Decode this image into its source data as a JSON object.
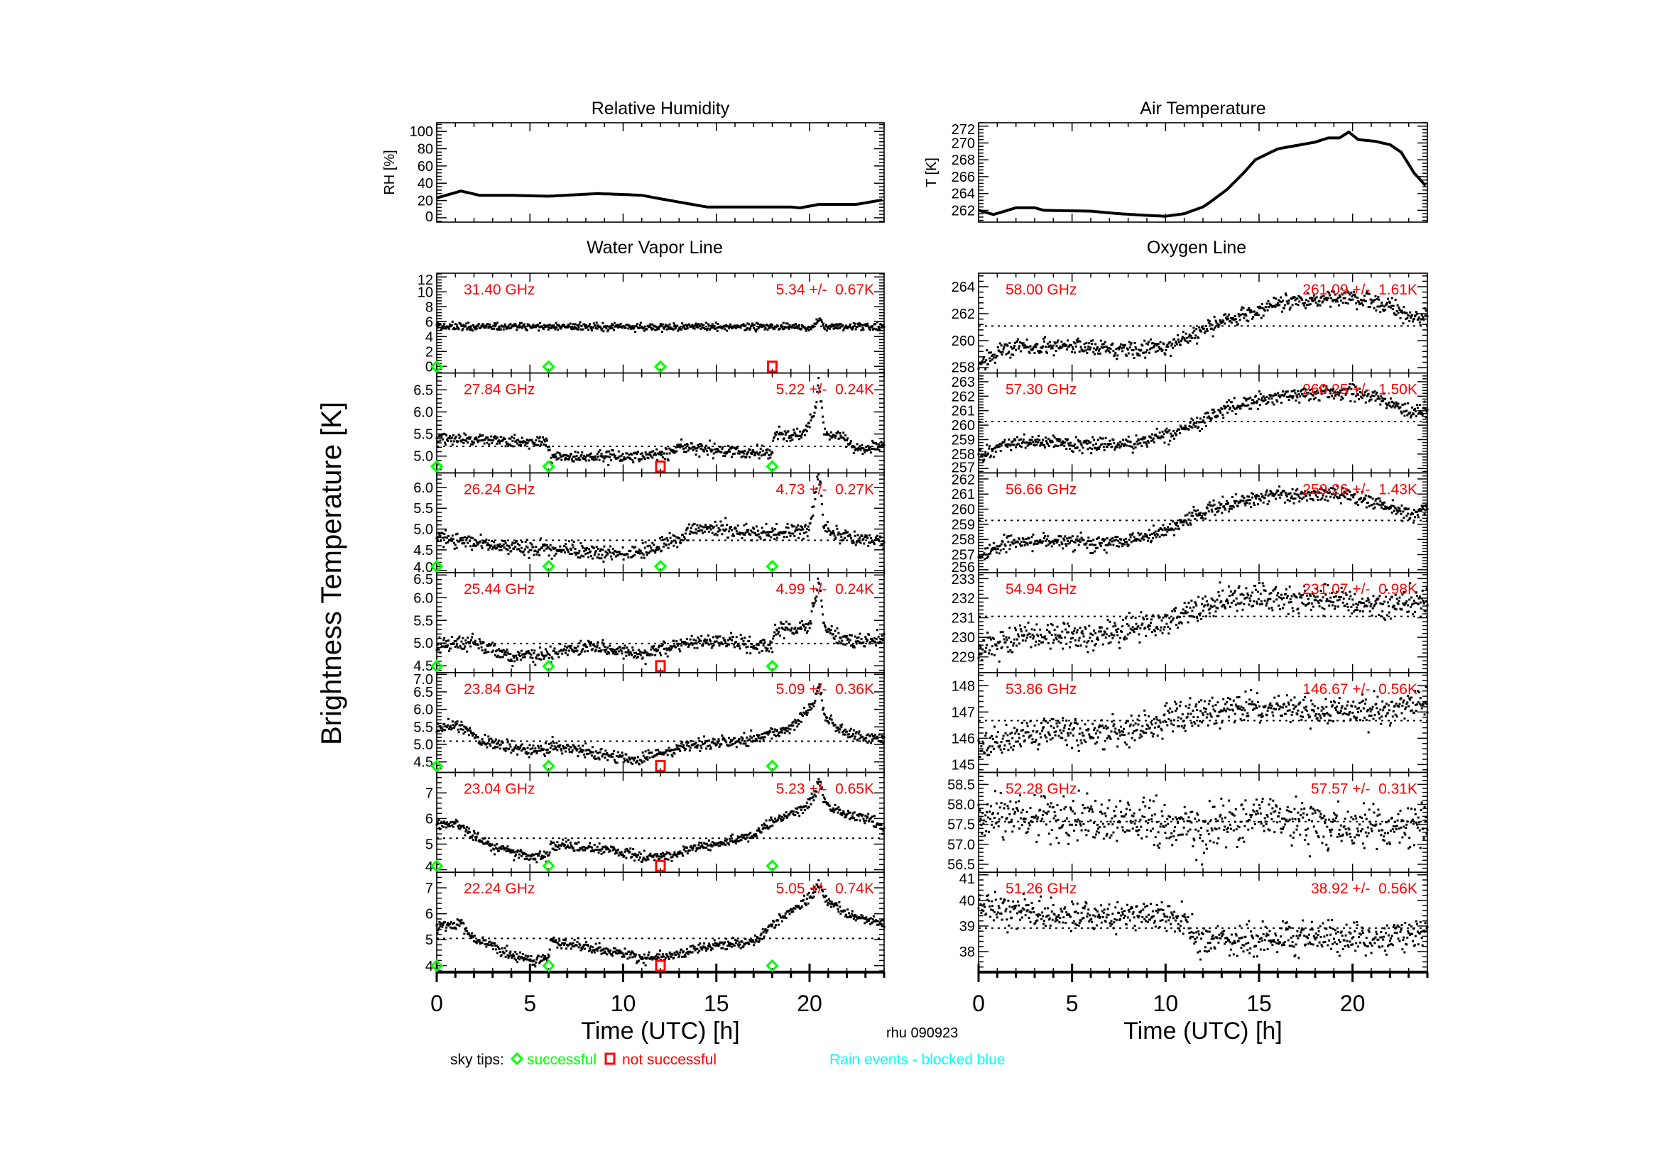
{
  "figure": {
    "ylabel": "Brightness Temperature [K]",
    "xlabel": "Time (UTC) [h]",
    "station": "rhu 090923",
    "xlim": [
      0,
      24
    ],
    "xticks": [
      0,
      5,
      10,
      15,
      20
    ],
    "xtick_labels": [
      "0",
      "5",
      "10",
      "15",
      "20"
    ],
    "groups": {
      "water": "Water Vapor Line",
      "oxygen": "Oxygen Line"
    },
    "legend": {
      "prefix": "sky tips:",
      "success": "successful",
      "fail": "not successful",
      "rain": "Rain events - blocked blue"
    },
    "colors": {
      "success": "#00ff00",
      "fail": "#ff0000",
      "rain": "#00ffff",
      "label": "#ff0000",
      "data": "#000000"
    }
  },
  "chart_data": [
    {
      "type": "line",
      "title": "Relative Humidity",
      "ylabel": "RH [%]",
      "xlim": [
        0,
        24
      ],
      "ylim": [
        -5,
        110
      ],
      "yticks": [
        0,
        20,
        40,
        60,
        80,
        100
      ],
      "ytick_labels": [
        "0",
        "20",
        "40",
        "60",
        "80",
        "100"
      ],
      "x": [
        0,
        1.3,
        2.3,
        4,
        6,
        8.6,
        10,
        11,
        12,
        14.5,
        19,
        19.5,
        20.5,
        22.5,
        24
      ],
      "y": [
        23,
        31,
        26,
        26,
        25,
        28,
        27,
        26,
        22,
        12.5,
        12.5,
        11.5,
        15.5,
        15.5,
        21
      ]
    },
    {
      "type": "line",
      "title": "Air Temperature",
      "ylabel": "T [K]",
      "xlim": [
        0,
        24
      ],
      "ylim": [
        260.6,
        272.4
      ],
      "yticks": [
        262,
        264,
        266,
        268,
        270,
        272
      ],
      "ytick_labels": [
        "262",
        "264",
        "266",
        "268",
        "270",
        "272"
      ],
      "x": [
        0,
        0.8,
        2,
        3,
        3.5,
        6,
        7.5,
        9,
        10,
        11,
        12,
        12.4,
        13.3,
        14.2,
        14.8,
        16,
        17,
        18,
        18.7,
        19.3,
        19.8,
        20.3,
        21.2,
        22,
        22.6,
        23.3,
        24
      ],
      "y": [
        262,
        261.5,
        262.3,
        262.3,
        262.0,
        261.9,
        261.6,
        261.4,
        261.3,
        261.6,
        262.4,
        263.0,
        264.5,
        266.5,
        268,
        269.3,
        269.7,
        270.1,
        270.6,
        270.6,
        271.3,
        270.4,
        270.2,
        269.8,
        268.9,
        266.4,
        264.7
      ]
    },
    {
      "type": "scatter",
      "group": "water",
      "frequency": "31.40 GHz",
      "stats": "5.34 +/-  0.67K",
      "mean": 5.34,
      "ylim": [
        -0.9,
        12.5
      ],
      "yticks": [
        0,
        2,
        4,
        6,
        8,
        10,
        12
      ],
      "ytick_labels": [
        "0",
        "2",
        "4",
        "6",
        "8",
        "10",
        "12"
      ],
      "noise": 0.25,
      "baseline": {
        "x": [
          0,
          20.2,
          20.5,
          20.8,
          24
        ],
        "y": [
          5.3,
          5.3,
          6.2,
          5.3,
          5.3
        ]
      },
      "sky_tips": [
        {
          "time": 0,
          "status": "success"
        },
        {
          "time": 6,
          "status": "success"
        },
        {
          "time": 12,
          "status": "success"
        },
        {
          "time": 18,
          "status": "fail"
        }
      ]
    },
    {
      "type": "scatter",
      "group": "water",
      "frequency": "27.84 GHz",
      "stats": "5.22 +/-  0.24K",
      "mean": 5.22,
      "ylim": [
        4.62,
        6.88
      ],
      "yticks": [
        5.0,
        5.5,
        6.0,
        6.5
      ],
      "ytick_labels": [
        "5.0",
        "5.5",
        "6.0",
        "6.5"
      ],
      "noise": 0.07,
      "baseline": {
        "x": [
          0,
          6,
          6.1,
          9,
          11,
          12.5,
          13,
          18,
          18.1,
          19.5,
          20.3,
          20.5,
          20.8,
          22,
          22.3,
          24
        ],
        "y": [
          5.4,
          5.3,
          4.95,
          5.0,
          5.0,
          5.05,
          5.2,
          5.05,
          5.5,
          5.45,
          6.0,
          6.7,
          5.5,
          5.4,
          5.15,
          5.25
        ]
      },
      "sky_tips": [
        {
          "time": 0,
          "status": "success"
        },
        {
          "time": 6,
          "status": "success"
        },
        {
          "time": 12,
          "status": "fail"
        },
        {
          "time": 18,
          "status": "success"
        }
      ]
    },
    {
      "type": "scatter",
      "group": "water",
      "frequency": "26.24 GHz",
      "stats": "4.73 +/-  0.27K",
      "mean": 4.73,
      "ylim": [
        3.95,
        6.35
      ],
      "yticks": [
        4.0,
        4.5,
        5.0,
        5.5,
        6.0
      ],
      "ytick_labels": [
        "4.0",
        "4.5",
        "5.0",
        "5.5",
        "6.0"
      ],
      "noise": 0.09,
      "baseline": {
        "x": [
          0,
          3,
          6,
          10,
          12,
          13,
          13.5,
          15,
          18,
          20,
          20.5,
          20.8,
          22,
          24
        ],
        "y": [
          4.8,
          4.6,
          4.5,
          4.4,
          4.6,
          4.7,
          5.0,
          5.0,
          4.9,
          5.0,
          6.3,
          5.0,
          4.8,
          4.7
        ]
      },
      "sky_tips": [
        {
          "time": 0,
          "status": "success"
        },
        {
          "time": 6,
          "status": "success"
        },
        {
          "time": 12,
          "status": "success"
        },
        {
          "time": 18,
          "status": "success"
        }
      ]
    },
    {
      "type": "scatter",
      "group": "water",
      "frequency": "25.44 GHz",
      "stats": "4.99 +/-  0.24K",
      "mean": 4.99,
      "ylim": [
        4.35,
        6.55
      ],
      "yticks": [
        4.5,
        5.0,
        5.5,
        6.0,
        6.5
      ],
      "ytick_labels": [
        "4.5",
        "5.0",
        "5.5",
        "6.0",
        "6.5"
      ],
      "noise": 0.08,
      "baseline": {
        "x": [
          0,
          2,
          4,
          6,
          8,
          11,
          13,
          15,
          18,
          18.1,
          20,
          20.5,
          20.8,
          22,
          24
        ],
        "y": [
          4.95,
          5.0,
          4.7,
          4.75,
          4.95,
          4.75,
          5.0,
          5.05,
          4.9,
          5.3,
          5.35,
          6.4,
          5.3,
          5.05,
          5.1
        ]
      },
      "sky_tips": [
        {
          "time": 0,
          "status": "success"
        },
        {
          "time": 6,
          "status": "success"
        },
        {
          "time": 12,
          "status": "fail"
        },
        {
          "time": 18,
          "status": "success"
        }
      ]
    },
    {
      "type": "scatter",
      "group": "water",
      "frequency": "23.84 GHz",
      "stats": "5.09 +/-  0.36K",
      "mean": 5.09,
      "ylim": [
        4.2,
        7.05
      ],
      "yticks": [
        4.5,
        5.0,
        5.5,
        6.0,
        6.5,
        7.0
      ],
      "ytick_labels": [
        "4.5",
        "5.0",
        "5.5",
        "6.0",
        "6.5",
        "7.0"
      ],
      "noise": 0.09,
      "baseline": {
        "x": [
          0,
          1,
          2.5,
          5,
          6,
          6.2,
          9,
          10.5,
          12,
          14,
          17,
          19,
          20.3,
          20.5,
          20.8,
          22,
          24
        ],
        "y": [
          5.45,
          5.6,
          5.1,
          4.8,
          4.9,
          5.0,
          4.7,
          4.55,
          4.75,
          5.0,
          5.15,
          5.5,
          6.2,
          6.8,
          5.8,
          5.3,
          5.15
        ]
      },
      "sky_tips": [
        {
          "time": 0,
          "status": "success"
        },
        {
          "time": 6,
          "status": "success"
        },
        {
          "time": 12,
          "status": "fail"
        },
        {
          "time": 18,
          "status": "success"
        }
      ]
    },
    {
      "type": "scatter",
      "group": "water",
      "frequency": "23.04 GHz",
      "stats": "5.23 +/-  0.65K",
      "mean": 5.23,
      "ylim": [
        3.9,
        7.8
      ],
      "yticks": [
        4,
        5,
        6,
        7
      ],
      "ytick_labels": [
        "4",
        "5",
        "6",
        "7"
      ],
      "noise": 0.1,
      "baseline": {
        "x": [
          0,
          1,
          3,
          5,
          6,
          6.1,
          9,
          11,
          12.5,
          14,
          17,
          18,
          19.5,
          20.3,
          20.5,
          20.8,
          22,
          23.3,
          24
        ],
        "y": [
          5.8,
          5.8,
          4.9,
          4.5,
          4.55,
          4.95,
          4.8,
          4.5,
          4.55,
          4.9,
          5.3,
          5.9,
          6.3,
          6.9,
          7.5,
          6.6,
          6.1,
          6.0,
          5.5
        ]
      },
      "sky_tips": [
        {
          "time": 0,
          "status": "success"
        },
        {
          "time": 6,
          "status": "success"
        },
        {
          "time": 12,
          "status": "fail"
        },
        {
          "time": 18,
          "status": "success"
        }
      ]
    },
    {
      "type": "scatter",
      "group": "water",
      "frequency": "22.24 GHz",
      "stats": "5.05 +/-  0.74K",
      "mean": 5.05,
      "ylim": [
        3.75,
        7.6
      ],
      "yticks": [
        4,
        5,
        6,
        7
      ],
      "ytick_labels": [
        "4",
        "5",
        "6",
        "7"
      ],
      "noise": 0.1,
      "baseline": {
        "x": [
          0,
          1.3,
          2,
          3.5,
          5,
          6,
          6.1,
          9,
          11,
          12.5,
          13.5,
          15,
          17,
          18,
          19.5,
          20.3,
          20.5,
          20.8,
          22,
          24
        ],
        "y": [
          5.5,
          5.6,
          5.0,
          4.6,
          4.2,
          4.3,
          4.95,
          4.6,
          4.3,
          4.35,
          4.6,
          4.8,
          4.9,
          5.6,
          6.3,
          6.9,
          7.3,
          6.6,
          6.0,
          5.6
        ]
      },
      "sky_tips": [
        {
          "time": 0,
          "status": "success"
        },
        {
          "time": 6,
          "status": "success"
        },
        {
          "time": 12,
          "status": "fail"
        },
        {
          "time": 18,
          "status": "success"
        }
      ]
    },
    {
      "type": "scatter",
      "group": "oxygen",
      "frequency": "58.00 GHz",
      "stats": "261.09 +/-  1.61K",
      "mean": 261.09,
      "ylim": [
        257.6,
        265
      ],
      "yticks": [
        258,
        260,
        262,
        264
      ],
      "ytick_labels": [
        "258",
        "260",
        "262",
        "264"
      ],
      "noise": 0.3,
      "baseline": {
        "x": [
          0,
          1.5,
          3.5,
          4.5,
          6,
          8,
          10,
          11.5,
          12.5,
          14,
          15.5,
          17,
          19,
          21,
          22.5,
          23.2,
          24
        ],
        "y": [
          258.3,
          259.5,
          259.6,
          259.7,
          259.5,
          259.3,
          259.5,
          260.3,
          261.2,
          261.8,
          262.5,
          263.0,
          263.2,
          263.0,
          262.3,
          261.6,
          261.9
        ]
      },
      "sky_tips": []
    },
    {
      "type": "scatter",
      "group": "oxygen",
      "frequency": "57.30 GHz",
      "stats": "260.25 +/-  1.50K",
      "mean": 260.25,
      "ylim": [
        256.7,
        263.6
      ],
      "yticks": [
        257,
        258,
        259,
        260,
        261,
        262,
        263
      ],
      "ytick_labels": [
        "257",
        "258",
        "259",
        "260",
        "261",
        "262",
        "263"
      ],
      "noise": 0.25,
      "baseline": {
        "x": [
          0,
          1.5,
          4,
          6,
          8,
          10,
          12,
          13,
          15,
          17,
          20,
          21,
          22.5,
          23,
          24
        ],
        "y": [
          257.8,
          258.7,
          258.8,
          258.6,
          258.7,
          259.3,
          260.3,
          261,
          261.8,
          262.1,
          262.2,
          262,
          261.3,
          260.9,
          261
        ]
      },
      "sky_tips": []
    },
    {
      "type": "scatter",
      "group": "oxygen",
      "frequency": "56.66 GHz",
      "stats": "259.26 +/-  1.43K",
      "mean": 259.26,
      "ylim": [
        255.8,
        262.4
      ],
      "yticks": [
        256,
        257,
        258,
        259,
        260,
        261,
        262
      ],
      "ytick_labels": [
        "256",
        "257",
        "258",
        "259",
        "260",
        "261",
        "262"
      ],
      "noise": 0.25,
      "baseline": {
        "x": [
          0,
          1.5,
          4,
          6,
          8,
          10,
          12,
          14,
          16,
          20,
          22,
          23,
          24
        ],
        "y": [
          256.8,
          257.8,
          257.9,
          257.7,
          257.9,
          258.6,
          259.8,
          260.5,
          261,
          260.9,
          260.1,
          259.7,
          260.1
        ]
      },
      "sky_tips": []
    },
    {
      "type": "scatter",
      "group": "oxygen",
      "frequency": "54.94 GHz",
      "stats": "231.07 +/-  0.98K",
      "mean": 231.07,
      "ylim": [
        228.2,
        233.3
      ],
      "yticks": [
        229,
        230,
        231,
        232,
        233
      ],
      "ytick_labels": [
        "229",
        "230",
        "231",
        "232",
        "233"
      ],
      "noise": 0.35,
      "baseline": {
        "x": [
          0,
          2,
          4,
          6,
          8,
          10,
          12,
          14,
          17,
          20,
          22,
          24
        ],
        "y": [
          229.3,
          230.0,
          230.2,
          230.1,
          230.4,
          230.8,
          231.6,
          232.1,
          232.0,
          231.8,
          231.5,
          231.9
        ]
      },
      "sky_tips": []
    },
    {
      "type": "scatter",
      "group": "oxygen",
      "frequency": "53.86 GHz",
      "stats": "146.67 +/-  0.56K",
      "mean": 146.67,
      "ylim": [
        144.7,
        148.5
      ],
      "yticks": [
        145,
        146,
        147,
        148
      ],
      "ytick_labels": [
        "145",
        "146",
        "147",
        "148"
      ],
      "noise": 0.28,
      "baseline": {
        "x": [
          0,
          2,
          4,
          6,
          8,
          10,
          12,
          14,
          17,
          20,
          24
        ],
        "y": [
          145.6,
          146.0,
          146.3,
          146.2,
          146.3,
          146.7,
          147.0,
          147.2,
          147.1,
          147.0,
          147.3
        ]
      },
      "sky_tips": []
    },
    {
      "type": "scatter",
      "group": "oxygen",
      "frequency": "52.28 GHz",
      "stats": "57.57 +/-  0.31K",
      "mean": 57.57,
      "ylim": [
        56.3,
        58.8
      ],
      "yticks": [
        56.5,
        57.0,
        57.5,
        58.0,
        58.5
      ],
      "ytick_labels": [
        "56.5",
        "57.0",
        "57.5",
        "58.0",
        "58.5"
      ],
      "noise": 0.3,
      "baseline": {
        "x": [
          0,
          6,
          11,
          12,
          13,
          15,
          18,
          22,
          24
        ],
        "y": [
          57.7,
          57.6,
          57.5,
          57.2,
          57.5,
          57.7,
          57.5,
          57.4,
          57.5
        ]
      },
      "sky_tips": []
    },
    {
      "type": "scatter",
      "group": "oxygen",
      "frequency": "51.26 GHz",
      "stats": "38.92 +/-  0.56K",
      "mean": 38.92,
      "ylim": [
        37.2,
        41.1
      ],
      "yticks": [
        38,
        39,
        40,
        41
      ],
      "ytick_labels": [
        "38",
        "39",
        "40",
        "41"
      ],
      "noise": 0.3,
      "baseline": {
        "x": [
          0,
          6,
          11,
          11.8,
          14,
          18,
          22,
          24
        ],
        "y": [
          39.7,
          39.4,
          39.3,
          38.4,
          38.4,
          38.6,
          38.4,
          38.9
        ]
      },
      "sky_tips": []
    }
  ]
}
